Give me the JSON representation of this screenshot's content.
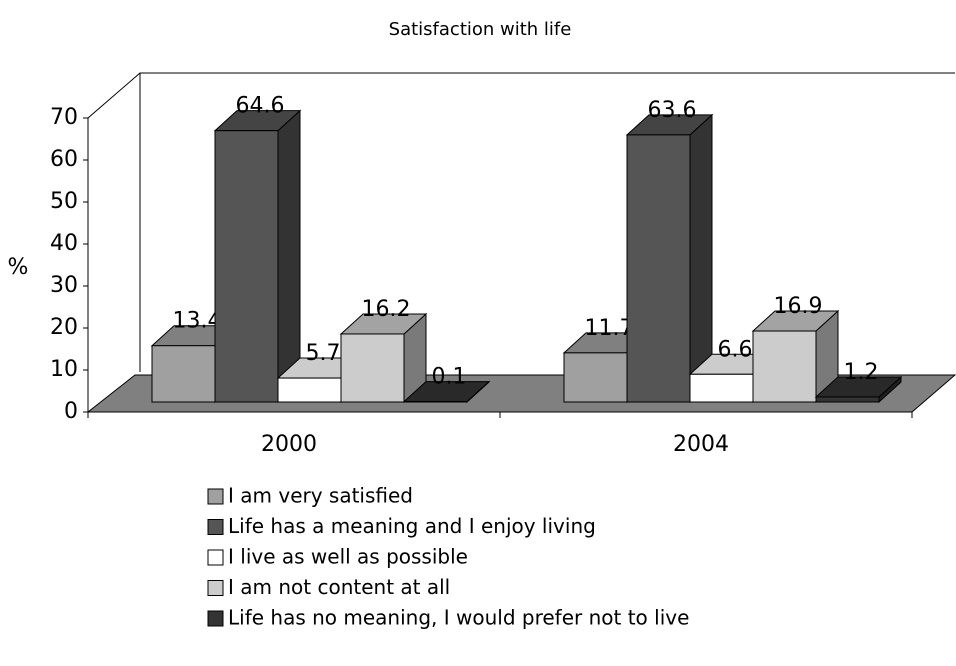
{
  "chart_data": {
    "type": "bar3d",
    "title": "Satisfaction with life",
    "ylabel": "%",
    "categories": [
      "2000",
      "2004"
    ],
    "series": [
      {
        "name": "I am very satisfied",
        "color": "#a0a0a0",
        "values": [
          13.4,
          11.7
        ]
      },
      {
        "name": "Life has a meaning and I enjoy living",
        "color": "#555555",
        "values": [
          64.6,
          63.6
        ]
      },
      {
        "name": "I live as well as possible",
        "color": "#ffffff",
        "values": [
          5.7,
          6.6
        ]
      },
      {
        "name": "I am not content at all",
        "color": "#cccccc",
        "values": [
          16.2,
          16.9
        ]
      },
      {
        "name": "Life has no meaning, I would prefer not to live",
        "color": "#333333",
        "values": [
          0.1,
          1.2
        ]
      }
    ],
    "ylim": [
      0,
      70
    ],
    "yticks": [
      0,
      10,
      20,
      30,
      40,
      50,
      60,
      70
    ]
  }
}
